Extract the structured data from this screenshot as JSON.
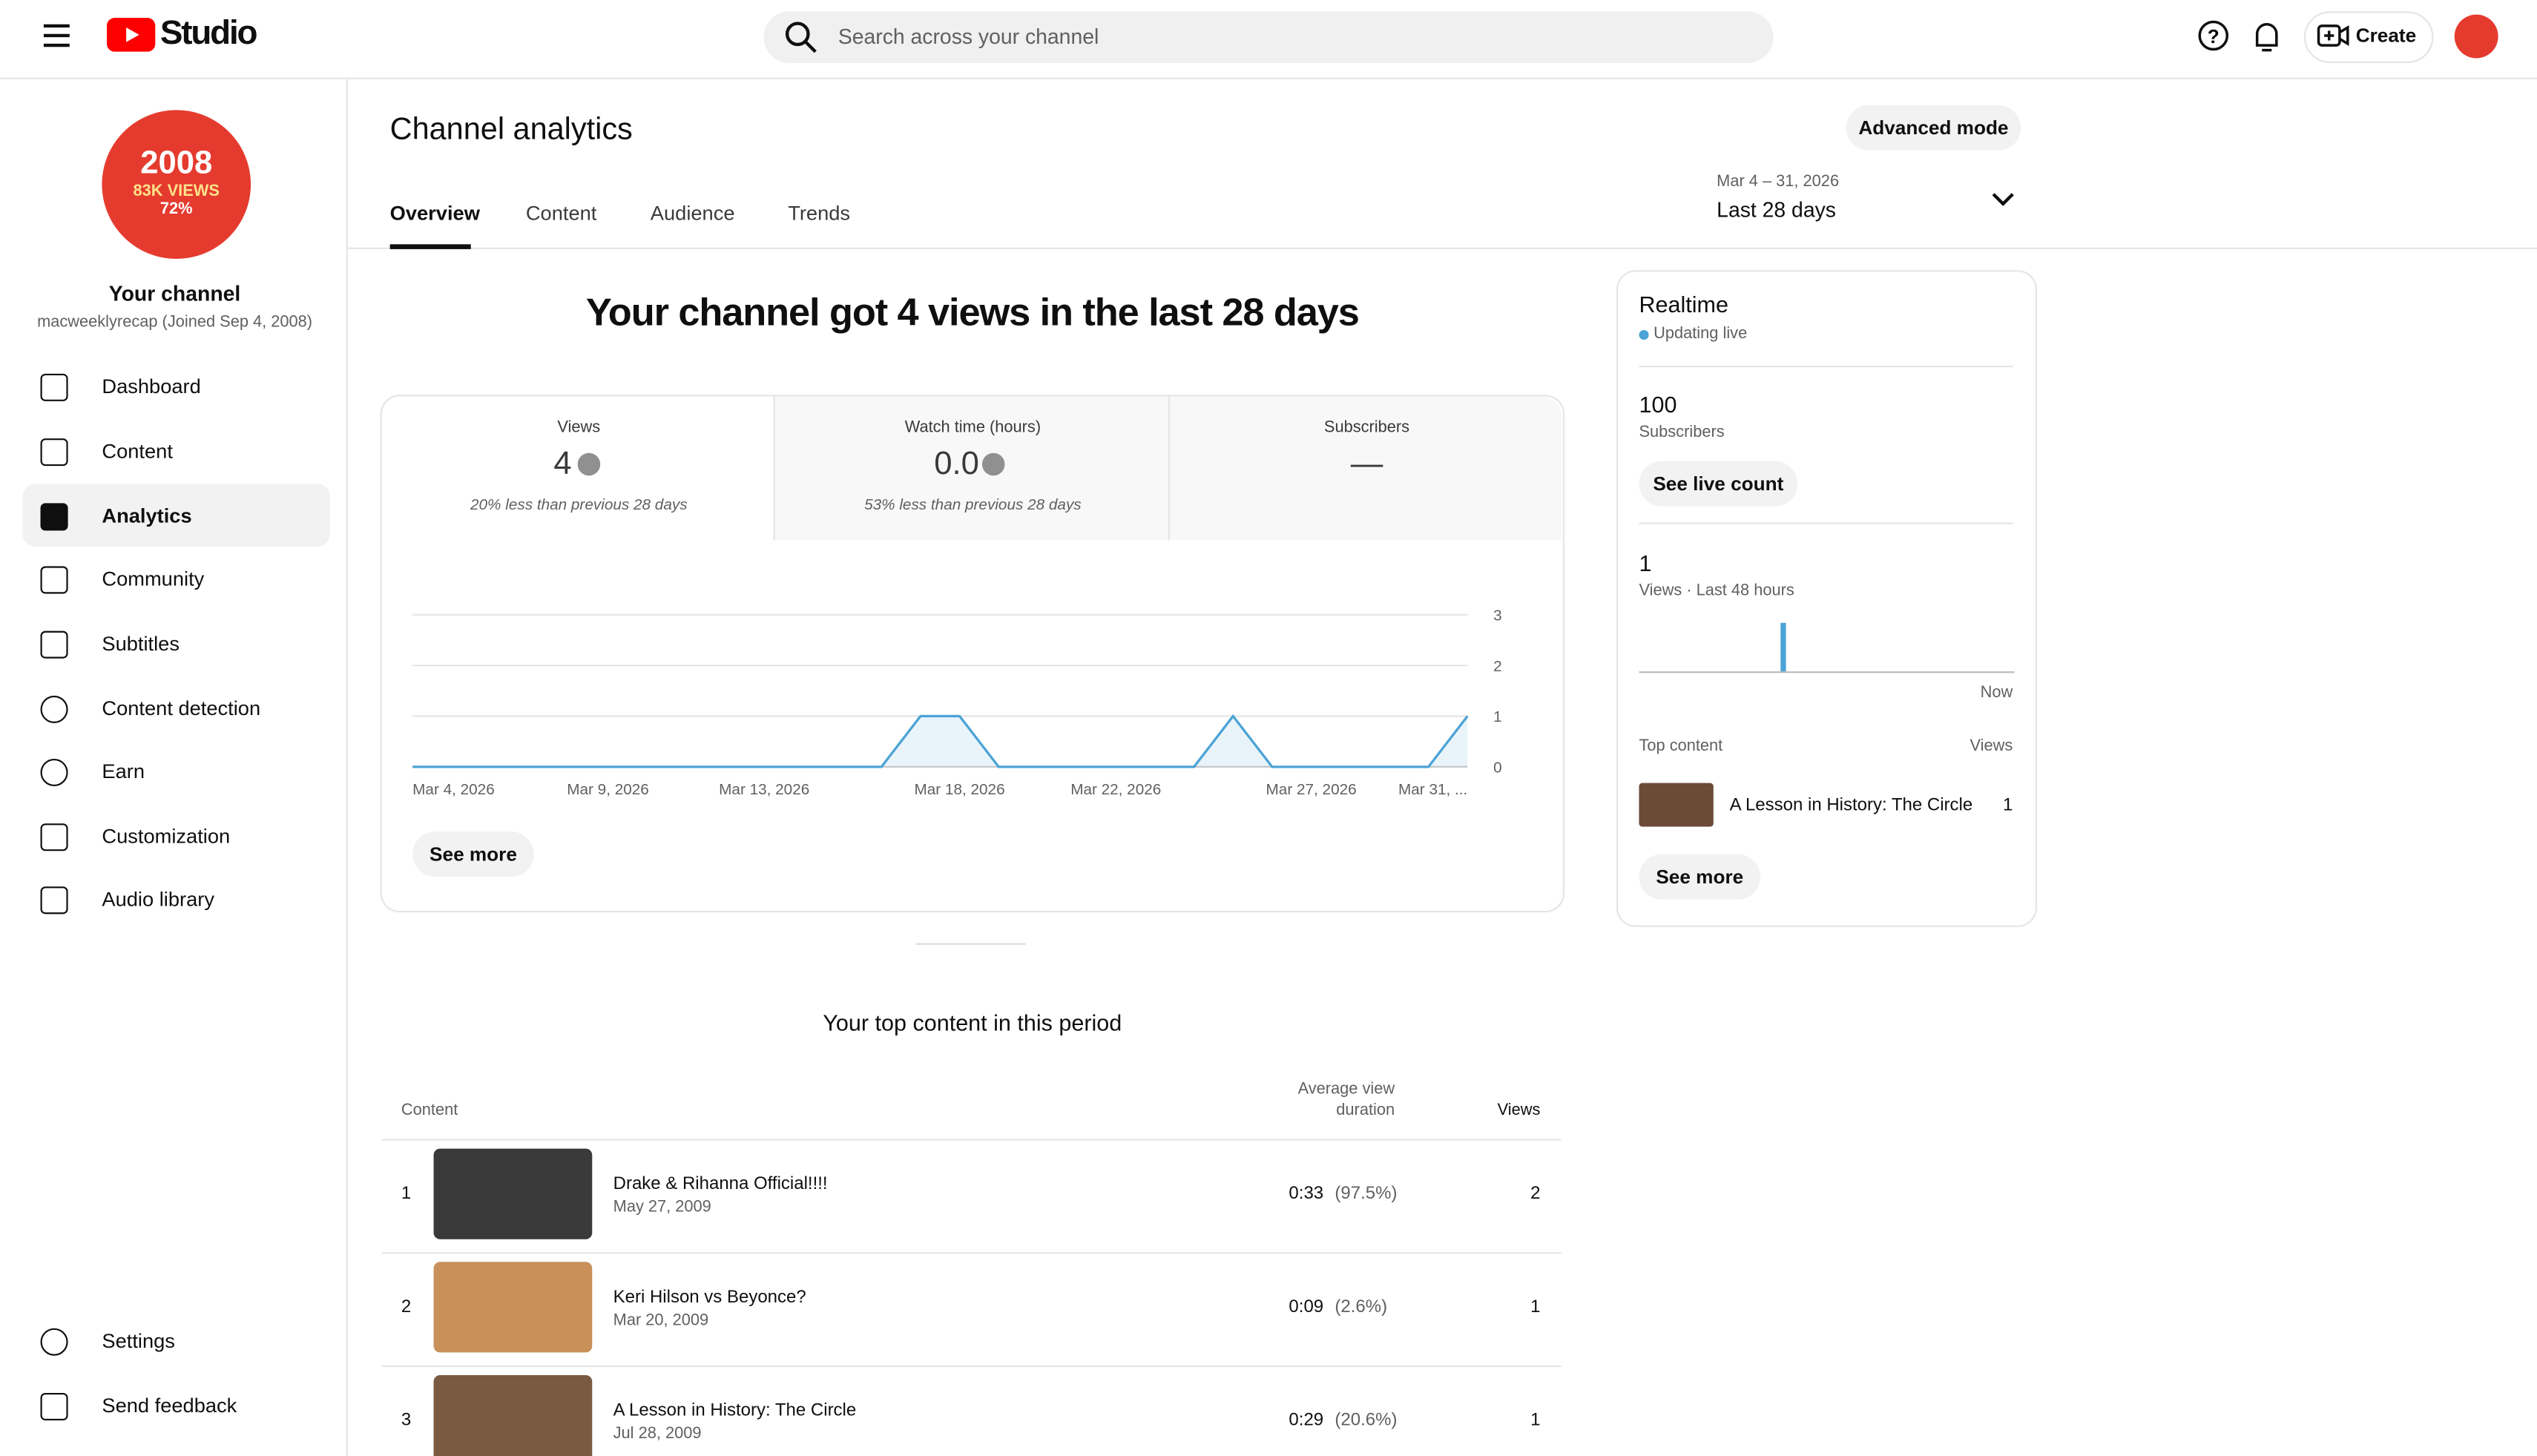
{
  "header": {
    "logo_text": "Studio",
    "search_placeholder": "Search across your channel",
    "create": "Create"
  },
  "sidebar": {
    "avatar_text": [
      "2008",
      "83K VIEWS",
      "72%"
    ],
    "channel_title": "Your channel",
    "channel_handle": "macweeklyrecap (Joined Sep 4, 2008)",
    "nav": [
      "Dashboard",
      "Content",
      "Analytics",
      "Community",
      "Subtitles",
      "Content detection",
      "Earn",
      "Customization",
      "Audio library"
    ],
    "bottom": [
      "Settings",
      "Send feedback"
    ]
  },
  "main": {
    "title": "Channel analytics",
    "advanced": "Advanced mode",
    "tabs": [
      "Overview",
      "Content",
      "Audience",
      "Trends"
    ],
    "date_range": "Mar 4 – 31, 2026",
    "period": "Last 28 days",
    "headline": "Your channel got 4 views in the last 28 days",
    "metrics": [
      {
        "label": "Views",
        "value": "4",
        "note": "20% less than previous 28 days"
      },
      {
        "label": "Watch time (hours)",
        "value": "0.0",
        "note": "53% less than previous 28 days"
      },
      {
        "label": "Subscribers",
        "value": "—"
      }
    ],
    "see_more": "See more"
  },
  "chart_data": [
    {
      "type": "line",
      "color": "#4ba3d6",
      "categories": [
        "Mar 4, 2026",
        null,
        null,
        null,
        null,
        "Mar 9, 2026",
        null,
        null,
        null,
        "Mar 13, 2026",
        null,
        null,
        null,
        null,
        "Mar 18, 2026",
        null,
        null,
        null,
        "Mar 22, 2026",
        null,
        null,
        null,
        null,
        "Mar 27, 2026",
        null,
        null,
        null,
        "Mar 31, ..."
      ],
      "values": [
        0,
        0,
        0,
        0,
        0,
        0,
        0,
        0,
        0,
        0,
        0,
        0,
        0,
        1,
        1,
        0,
        0,
        0,
        0,
        0,
        0,
        1,
        0,
        0,
        0,
        0,
        0,
        1
      ],
      "ylim": [
        0,
        3
      ],
      "yticks": [
        0,
        1,
        2,
        3
      ],
      "grid": true
    },
    {
      "type": "bar",
      "color": "#4ba3d6",
      "values": [
        0,
        0,
        0,
        0,
        0,
        0,
        0,
        0,
        0,
        0,
        0,
        0,
        0,
        0,
        0,
        0,
        0,
        0,
        1,
        0,
        0,
        0,
        0,
        0,
        0,
        0,
        0,
        0,
        0,
        0,
        0,
        0,
        0,
        0,
        0,
        0,
        0,
        0,
        0,
        0,
        0,
        0,
        0,
        0,
        0,
        0,
        0,
        0
      ],
      "ylim": [
        0,
        1
      ]
    }
  ],
  "top_content": {
    "title": "Your top content in this period",
    "columns": [
      "Content",
      "Average view duration",
      "Views"
    ],
    "rows": [
      {
        "rank": "1",
        "title": "Drake & Rihanna Official!!!!",
        "date": "May 27, 2009",
        "duration": "0:33",
        "percent": "(97.5%)",
        "views": "2"
      },
      {
        "rank": "2",
        "title": "Keri Hilson vs Beyonce?",
        "date": "Mar 20, 2009",
        "duration": "0:09",
        "percent": "(2.6%)",
        "views": "1"
      },
      {
        "rank": "3",
        "title": "A Lesson in History: The Circle",
        "date": "Jul 28, 2009",
        "duration": "0:29",
        "percent": "(20.6%)",
        "views": "1"
      }
    ]
  },
  "realtime": {
    "title": "Realtime",
    "status": "Updating live",
    "subscribers_value": "100",
    "subscribers_label": "Subscribers",
    "see_live": "See live count",
    "views_value": "1",
    "views_label": "Views · Last 48 hours",
    "now": "Now",
    "top_content_label": "Top content",
    "views_col": "Views",
    "item_title": "A Lesson in History: The Circle",
    "item_views": "1",
    "see_more": "See more"
  }
}
